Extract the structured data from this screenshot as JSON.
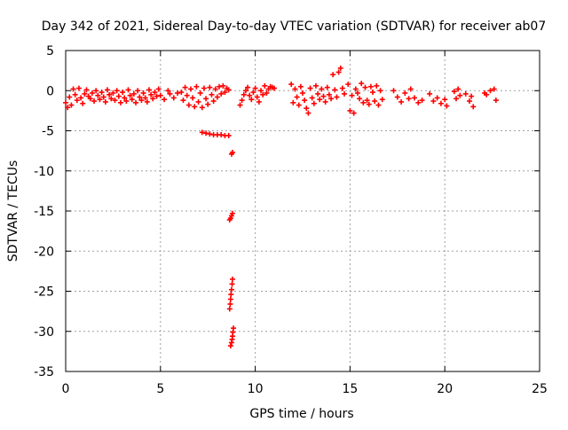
{
  "chart_data": {
    "type": "scatter",
    "title": "Day 342 of 2021, Sidereal Day-to-day VTEC variation (SDTVAR) for receiver ab07",
    "xlabel": "GPS time / hours",
    "ylabel": "SDTVAR / TECUs",
    "xlim": [
      0,
      25
    ],
    "ylim": [
      -35,
      5
    ],
    "xticks": [
      0,
      5,
      10,
      15,
      20,
      25
    ],
    "xtick_labels": [
      "0",
      "5",
      "10",
      "15",
      "20",
      "25"
    ],
    "yticks": [
      5,
      0,
      -5,
      -10,
      -15,
      -20,
      -25,
      -30,
      -35
    ],
    "ytick_labels": [
      "5",
      "0",
      "-5",
      "-10",
      "-15",
      "-20",
      "-25",
      "-30",
      "-35"
    ],
    "grid": true,
    "marker": "+",
    "series": [
      {
        "name": "SDTVAR",
        "color": "#ff0000",
        "points": [
          [
            0.0,
            -1.5
          ],
          [
            0.1,
            -2.1
          ],
          [
            0.2,
            -0.8
          ],
          [
            0.3,
            -1.8
          ],
          [
            0.4,
            0.2
          ],
          [
            0.5,
            -0.5
          ],
          [
            0.6,
            -1.2
          ],
          [
            0.7,
            0.3
          ],
          [
            0.8,
            -0.9
          ],
          [
            0.9,
            -1.6
          ],
          [
            1.0,
            -0.4
          ],
          [
            1.1,
            0.1
          ],
          [
            1.2,
            -0.7
          ],
          [
            1.3,
            -1.0
          ],
          [
            1.4,
            -0.3
          ],
          [
            1.5,
            -1.3
          ],
          [
            1.6,
            0.0
          ],
          [
            1.7,
            -0.6
          ],
          [
            1.8,
            -1.1
          ],
          [
            1.9,
            -0.2
          ],
          [
            2.0,
            -0.8
          ],
          [
            2.1,
            -1.4
          ],
          [
            2.2,
            0.1
          ],
          [
            2.3,
            -0.5
          ],
          [
            2.4,
            -1.0
          ],
          [
            2.5,
            -0.3
          ],
          [
            2.6,
            -1.2
          ],
          [
            2.7,
            0.0
          ],
          [
            2.8,
            -0.7
          ],
          [
            2.9,
            -1.5
          ],
          [
            3.0,
            -0.2
          ],
          [
            3.1,
            -0.9
          ],
          [
            3.2,
            -1.3
          ],
          [
            3.3,
            0.1
          ],
          [
            3.4,
            -0.6
          ],
          [
            3.5,
            -1.1
          ],
          [
            3.6,
            -0.4
          ],
          [
            3.7,
            -1.5
          ],
          [
            3.8,
            0.0
          ],
          [
            3.9,
            -0.8
          ],
          [
            4.0,
            -1.2
          ],
          [
            4.1,
            -0.3
          ],
          [
            4.2,
            -0.9
          ],
          [
            4.3,
            -1.4
          ],
          [
            4.4,
            0.1
          ],
          [
            4.5,
            -0.5
          ],
          [
            4.6,
            -1.0
          ],
          [
            4.7,
            -0.2
          ],
          [
            4.8,
            -0.7
          ],
          [
            4.9,
            0.2
          ],
          [
            5.0,
            -0.6
          ],
          [
            5.2,
            -1.1
          ],
          [
            5.4,
            0.0
          ],
          [
            5.5,
            -0.4
          ],
          [
            5.7,
            -0.9
          ],
          [
            5.9,
            -0.3
          ],
          [
            6.1,
            -0.2
          ],
          [
            6.2,
            -1.2
          ],
          [
            6.3,
            0.4
          ],
          [
            6.4,
            -0.6
          ],
          [
            6.5,
            -1.8
          ],
          [
            6.6,
            0.2
          ],
          [
            6.7,
            -0.9
          ],
          [
            6.8,
            -2.0
          ],
          [
            6.9,
            0.5
          ],
          [
            7.0,
            -1.4
          ],
          [
            7.1,
            -0.3
          ],
          [
            7.2,
            -2.1
          ],
          [
            7.3,
            0.3
          ],
          [
            7.4,
            -1.0
          ],
          [
            7.5,
            -1.7
          ],
          [
            7.6,
            0.4
          ],
          [
            7.7,
            -0.5
          ],
          [
            7.8,
            -1.3
          ],
          [
            7.9,
            0.2
          ],
          [
            8.0,
            -0.8
          ],
          [
            8.1,
            0.5
          ],
          [
            8.2,
            -0.4
          ],
          [
            8.3,
            0.6
          ],
          [
            8.4,
            -0.2
          ],
          [
            8.5,
            0.3
          ],
          [
            8.6,
            0.1
          ],
          [
            7.2,
            -5.2
          ],
          [
            7.4,
            -5.3
          ],
          [
            7.6,
            -5.4
          ],
          [
            7.8,
            -5.5
          ],
          [
            8.0,
            -5.5
          ],
          [
            8.2,
            -5.5
          ],
          [
            8.4,
            -5.6
          ],
          [
            8.6,
            -5.6
          ],
          [
            8.8,
            -7.7
          ],
          [
            8.75,
            -7.9
          ],
          [
            8.8,
            -15.3
          ],
          [
            8.75,
            -15.6
          ],
          [
            8.7,
            -15.9
          ],
          [
            8.65,
            -16.1
          ],
          [
            8.8,
            -23.5
          ],
          [
            8.78,
            -24.1
          ],
          [
            8.75,
            -24.8
          ],
          [
            8.72,
            -25.4
          ],
          [
            8.7,
            -26.0
          ],
          [
            8.68,
            -26.6
          ],
          [
            8.65,
            -27.2
          ],
          [
            8.85,
            -29.6
          ],
          [
            8.82,
            -30.1
          ],
          [
            8.8,
            -30.6
          ],
          [
            8.78,
            -31.0
          ],
          [
            8.75,
            -31.4
          ],
          [
            8.7,
            -31.8
          ],
          [
            9.2,
            -1.8
          ],
          [
            9.3,
            -1.2
          ],
          [
            9.4,
            -0.5
          ],
          [
            9.5,
            0.0
          ],
          [
            9.6,
            0.4
          ],
          [
            9.7,
            -0.6
          ],
          [
            9.8,
            -1.1
          ],
          [
            9.9,
            -0.2
          ],
          [
            10.0,
            0.3
          ],
          [
            10.1,
            -0.8
          ],
          [
            10.2,
            -1.4
          ],
          [
            10.3,
            0.0
          ],
          [
            10.4,
            -0.5
          ],
          [
            10.5,
            0.6
          ],
          [
            10.6,
            -0.3
          ],
          [
            10.7,
            0.2
          ],
          [
            10.8,
            0.5
          ],
          [
            10.9,
            0.4
          ],
          [
            11.0,
            0.3
          ],
          [
            11.9,
            0.8
          ],
          [
            12.0,
            -1.5
          ],
          [
            12.1,
            0.2
          ],
          [
            12.2,
            -0.8
          ],
          [
            12.3,
            -1.8
          ],
          [
            12.4,
            0.5
          ],
          [
            12.5,
            -0.3
          ],
          [
            12.6,
            -1.2
          ],
          [
            12.7,
            -2.2
          ],
          [
            12.8,
            -2.8
          ],
          [
            12.9,
            0.3
          ],
          [
            13.0,
            -0.9
          ],
          [
            13.1,
            -1.6
          ],
          [
            13.2,
            0.6
          ],
          [
            13.3,
            -0.4
          ],
          [
            13.4,
            -1.1
          ],
          [
            13.5,
            0.2
          ],
          [
            13.6,
            -0.7
          ],
          [
            13.7,
            -1.4
          ],
          [
            13.8,
            0.4
          ],
          [
            13.9,
            -0.5
          ],
          [
            14.0,
            -1.0
          ],
          [
            14.1,
            2.0
          ],
          [
            14.2,
            0.1
          ],
          [
            14.3,
            -0.8
          ],
          [
            14.4,
            2.3
          ],
          [
            14.5,
            2.8
          ],
          [
            14.6,
            0.3
          ],
          [
            14.7,
            -0.4
          ],
          [
            14.9,
            0.8
          ],
          [
            15.0,
            -2.5
          ],
          [
            15.1,
            -0.6
          ],
          [
            15.2,
            -2.8
          ],
          [
            15.3,
            0.2
          ],
          [
            15.4,
            -0.3
          ],
          [
            15.5,
            -1.0
          ],
          [
            15.6,
            0.9
          ],
          [
            15.7,
            -1.5
          ],
          [
            15.8,
            0.4
          ],
          [
            15.9,
            -1.2
          ],
          [
            16.0,
            -1.7
          ],
          [
            16.1,
            0.5
          ],
          [
            16.2,
            -0.2
          ],
          [
            16.3,
            -1.3
          ],
          [
            16.4,
            0.6
          ],
          [
            16.5,
            -1.8
          ],
          [
            16.6,
            0.0
          ],
          [
            16.7,
            -1.1
          ],
          [
            17.3,
            0.0
          ],
          [
            17.5,
            -0.8
          ],
          [
            17.7,
            -1.4
          ],
          [
            17.9,
            -0.3
          ],
          [
            18.1,
            -1.0
          ],
          [
            18.2,
            0.2
          ],
          [
            18.4,
            -0.9
          ],
          [
            18.6,
            -1.5
          ],
          [
            18.8,
            -1.2
          ],
          [
            19.2,
            -0.4
          ],
          [
            19.4,
            -1.3
          ],
          [
            19.6,
            -0.9
          ],
          [
            19.8,
            -1.6
          ],
          [
            20.0,
            -1.1
          ],
          [
            20.1,
            -1.9
          ],
          [
            20.5,
            -0.1
          ],
          [
            20.6,
            -1.0
          ],
          [
            20.7,
            0.2
          ],
          [
            20.8,
            -0.6
          ],
          [
            21.1,
            -0.4
          ],
          [
            21.3,
            -1.3
          ],
          [
            21.4,
            -0.7
          ],
          [
            21.5,
            -2.0
          ],
          [
            22.1,
            -0.3
          ],
          [
            22.2,
            -0.5
          ],
          [
            22.4,
            0.0
          ],
          [
            22.6,
            0.2
          ],
          [
            22.7,
            -1.2
          ]
        ]
      }
    ]
  }
}
